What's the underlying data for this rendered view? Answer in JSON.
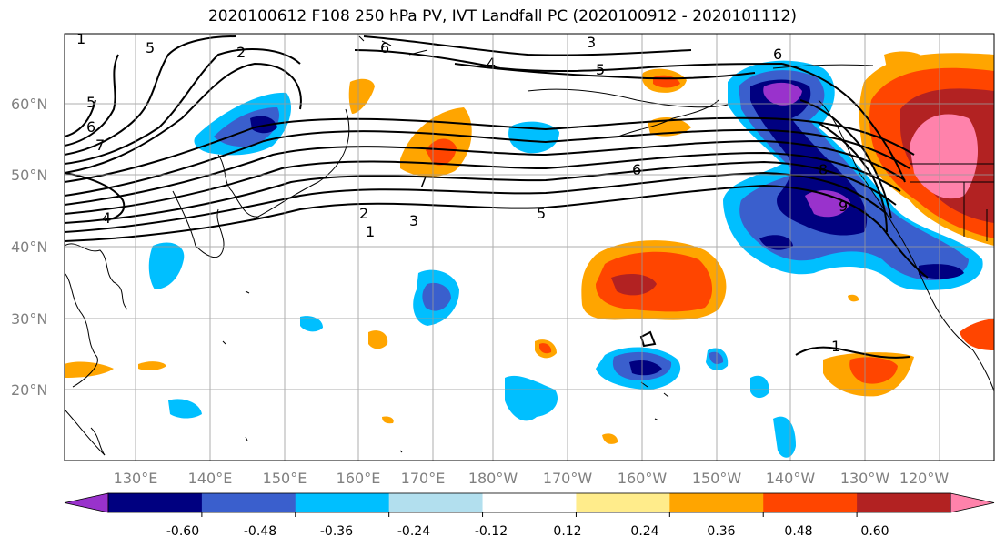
{
  "title": "2020100612 F108 250 hPa PV, IVT Landfall PC (2020100912 - 2020101112)",
  "latitude_labels": [
    "60°N",
    "50°N",
    "40°N",
    "30°N",
    "20°N"
  ],
  "longitude_labels": [
    "130°E",
    "140°E",
    "150°E",
    "160°E",
    "170°E",
    "180°W",
    "170°W",
    "160°W",
    "150°W",
    "140°W",
    "130°W",
    "120°W"
  ],
  "colorbar": {
    "colors": [
      "#9932cc",
      "#000080",
      "#3a5fcd",
      "#00bfff",
      "#b2dfee",
      "#ffffff",
      "#ffec8b",
      "#ffa500",
      "#ff4500",
      "#b22222",
      "#ff82ab"
    ],
    "tick_labels": [
      "-0.60",
      "-0.48",
      "-0.36",
      "-0.24",
      "-0.12",
      "0.12",
      "0.24",
      "0.36",
      "0.48",
      "0.60"
    ]
  },
  "contour_labels": [
    "1",
    "2",
    "3",
    "4",
    "5",
    "5",
    "5",
    "5",
    "6",
    "6",
    "6",
    "7",
    "7",
    "2",
    "3",
    "4",
    "6",
    "8",
    "9",
    "1",
    "1"
  ]
}
